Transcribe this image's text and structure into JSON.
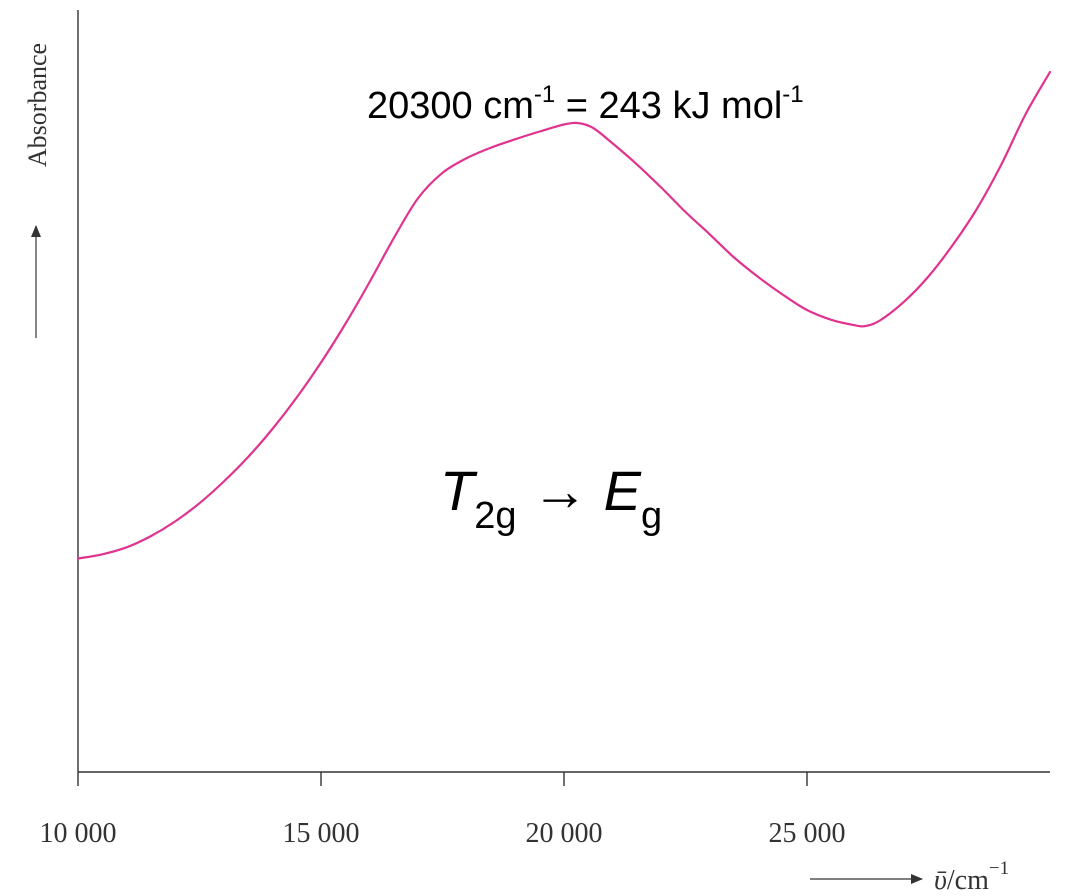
{
  "chart_data": {
    "type": "line",
    "title": "",
    "xlabel_symbol": "ῡ",
    "xlabel_unit": "/cm",
    "xlabel_exp": "−1",
    "ylabel": "Absorbance",
    "xlim": [
      10000,
      30000
    ],
    "ylim": [
      0,
      1
    ],
    "x_ticks": [
      10000,
      15000,
      20000,
      25000
    ],
    "x_tick_labels": [
      "10 000",
      "15 000",
      "20 000",
      "25 000"
    ],
    "grid": false,
    "line_color": "#e0338f",
    "axis_color": "#333333",
    "series": [
      {
        "x": [
          10000,
          10500,
          11000,
          11500,
          12000,
          12500,
          13000,
          13500,
          14000,
          14500,
          15000,
          15500,
          16000,
          16500,
          17000,
          17500,
          18000,
          18500,
          19000,
          19500,
          20000,
          20300,
          20600,
          21000,
          21500,
          22000,
          22500,
          23000,
          23500,
          24000,
          24500,
          25000,
          25500,
          26000,
          26200,
          26500,
          27000,
          27500,
          28000,
          28500,
          29000,
          29500,
          30000
        ],
        "y": [
          0.305,
          0.311,
          0.321,
          0.337,
          0.358,
          0.384,
          0.415,
          0.45,
          0.49,
          0.535,
          0.585,
          0.64,
          0.7,
          0.763,
          0.82,
          0.856,
          0.877,
          0.892,
          0.904,
          0.915,
          0.925,
          0.927,
          0.92,
          0.898,
          0.868,
          0.835,
          0.8,
          0.768,
          0.735,
          0.707,
          0.682,
          0.66,
          0.646,
          0.638,
          0.637,
          0.645,
          0.672,
          0.708,
          0.753,
          0.805,
          0.868,
          0.94,
          1.0
        ]
      }
    ]
  },
  "annotations": {
    "peak_text": "20300 cm",
    "peak_exp1": "-1",
    "peak_mid": " = 243 kJ mol",
    "peak_exp2": "-1",
    "transition_T": "T",
    "transition_T_sub": "2g",
    "transition_arrow": " → ",
    "transition_E": "E",
    "transition_E_sub": "g"
  }
}
